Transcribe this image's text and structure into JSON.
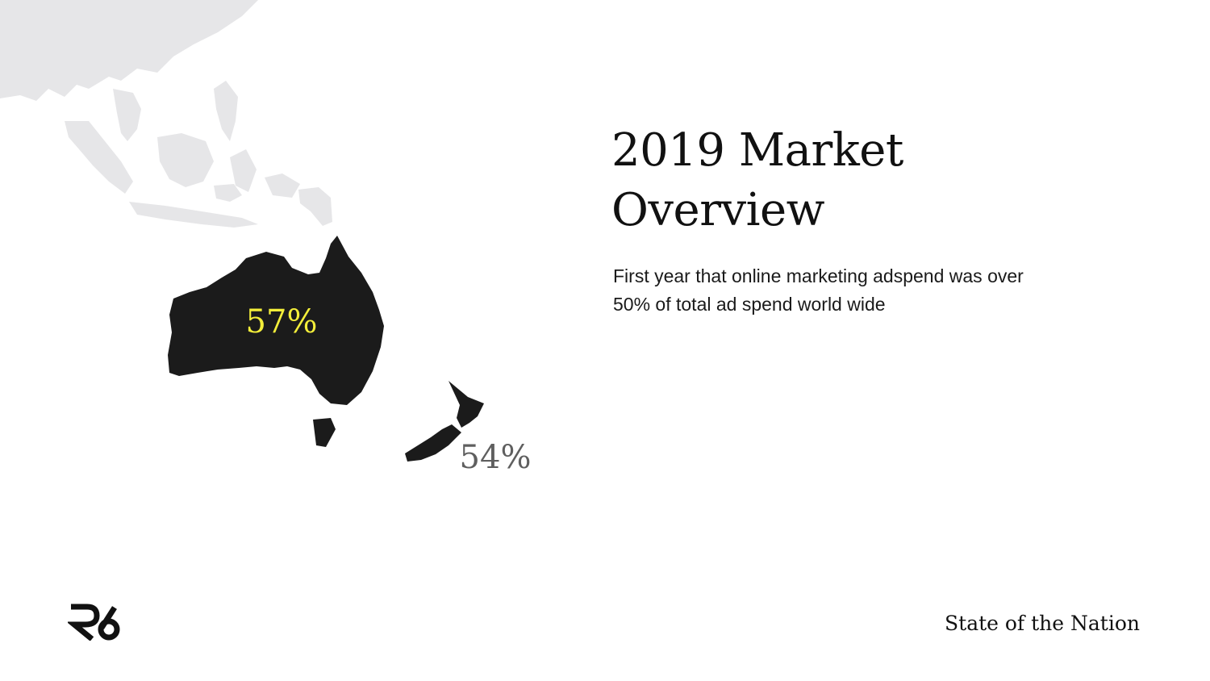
{
  "slide": {
    "heading_line1": "2019 Market",
    "heading_line2": "Overview",
    "subtitle_line1": "First year that online marketing adspend was over",
    "subtitle_line2": "50% of total ad spend world wide",
    "footer_title": "State of the Nation",
    "logo_text": "R6"
  },
  "map": {
    "regions": [
      {
        "name": "Australia",
        "label": "57%",
        "label_color": "#f3ee3a",
        "fill": "#1b1b1b"
      },
      {
        "name": "New Zealand",
        "label": "54%",
        "label_color": "#5f5f5f",
        "fill": "#1b1b1b"
      }
    ],
    "background_land_color": "#e6e6e8"
  }
}
